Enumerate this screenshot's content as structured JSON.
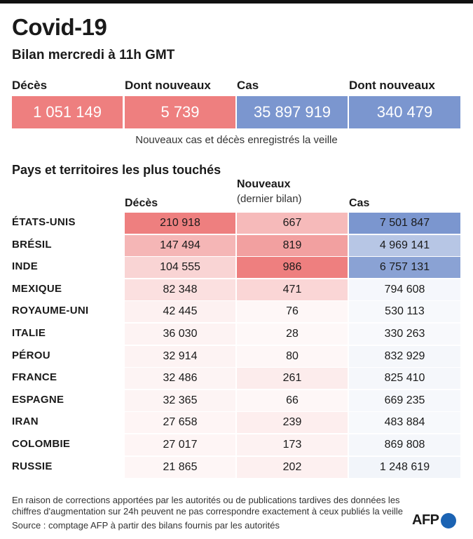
{
  "header": {
    "title": "Covid-19",
    "subtitle": "Bilan mercredi à 11h GMT"
  },
  "summary": {
    "items": [
      {
        "label": "Décès",
        "value": "1 051 149",
        "color": "#ee7f7f"
      },
      {
        "label": "Dont nouveaux",
        "value": "5 739",
        "color": "#ee7f7f"
      },
      {
        "label": "Cas",
        "value": "35 897 919",
        "color": "#7b96cf"
      },
      {
        "label": "Dont nouveaux",
        "value": "340 479",
        "color": "#7b96cf"
      }
    ],
    "note": "Nouveaux cas et décès enregistrés la veille"
  },
  "table": {
    "section_title": "Pays et territoires les plus touchés",
    "col_deaths": "Décès",
    "col_new": "Nouveaux",
    "col_new_sub": "(dernier bilan)",
    "col_cases": "Cas"
  },
  "chart_data": {
    "type": "table",
    "title": "Pays et territoires les plus touchés",
    "columns": [
      "Décès",
      "Nouveaux (dernier bilan)",
      "Cas"
    ],
    "rows": [
      {
        "country": "ÉTATS-UNIS",
        "deaths": 210918,
        "deaths_label": "210 918",
        "new": 667,
        "new_label": "667",
        "cases": 7501847,
        "cases_label": "7 501 847"
      },
      {
        "country": "BRÉSIL",
        "deaths": 147494,
        "deaths_label": "147 494",
        "new": 819,
        "new_label": "819",
        "cases": 4969141,
        "cases_label": "4 969 141"
      },
      {
        "country": "INDE",
        "deaths": 104555,
        "deaths_label": "104 555",
        "new": 986,
        "new_label": "986",
        "cases": 6757131,
        "cases_label": "6 757 131"
      },
      {
        "country": "MEXIQUE",
        "deaths": 82348,
        "deaths_label": "82 348",
        "new": 471,
        "new_label": "471",
        "cases": 794608,
        "cases_label": "794 608"
      },
      {
        "country": "ROYAUME-UNI",
        "deaths": 42445,
        "deaths_label": "42 445",
        "new": 76,
        "new_label": "76",
        "cases": 530113,
        "cases_label": "530 113"
      },
      {
        "country": "ITALIE",
        "deaths": 36030,
        "deaths_label": "36 030",
        "new": 28,
        "new_label": "28",
        "cases": 330263,
        "cases_label": "330 263"
      },
      {
        "country": "PÉROU",
        "deaths": 32914,
        "deaths_label": "32 914",
        "new": 80,
        "new_label": "80",
        "cases": 832929,
        "cases_label": "832 929"
      },
      {
        "country": "FRANCE",
        "deaths": 32486,
        "deaths_label": "32 486",
        "new": 261,
        "new_label": "261",
        "cases": 825410,
        "cases_label": "825 410"
      },
      {
        "country": "ESPAGNE",
        "deaths": 32365,
        "deaths_label": "32 365",
        "new": 66,
        "new_label": "66",
        "cases": 669235,
        "cases_label": "669 235"
      },
      {
        "country": "IRAN",
        "deaths": 27658,
        "deaths_label": "27 658",
        "new": 239,
        "new_label": "239",
        "cases": 483884,
        "cases_label": "483 884"
      },
      {
        "country": "COLOMBIE",
        "deaths": 27017,
        "deaths_label": "27 017",
        "new": 173,
        "new_label": "173",
        "cases": 869808,
        "cases_label": "869 808"
      },
      {
        "country": "RUSSIE",
        "deaths": 21865,
        "deaths_label": "21 865",
        "new": 202,
        "new_label": "202",
        "cases": 1248619,
        "cases_label": "1 248 619"
      }
    ],
    "colors": {
      "deaths_and_new": "#ee7f7f",
      "cases": "#7b96cf"
    }
  },
  "footer": {
    "note": "En raison de corrections apportées par les autorités ou de publications tardives des données  les chiffres d'augmentation sur 24h peuvent ne pas correspondre exactement à ceux publiés la veille",
    "source": "Source : comptage AFP à partir des bilans fournis par les autorités",
    "logo": "AFP"
  }
}
